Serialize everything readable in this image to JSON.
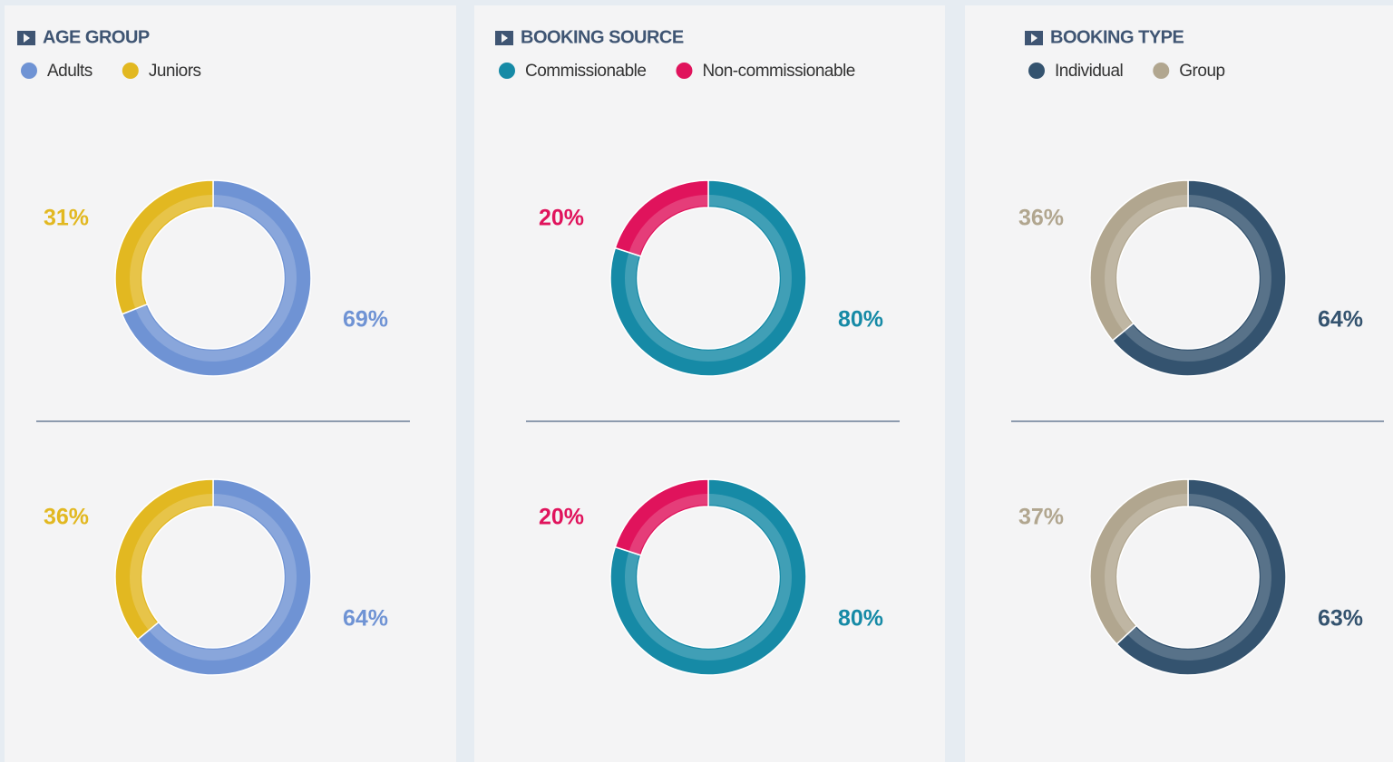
{
  "chart_data": [
    {
      "type": "pie",
      "title": "AGE GROUP",
      "categories": [
        "Adults",
        "Juniors"
      ],
      "colors": [
        "#6f93d4",
        "#e2b821"
      ],
      "series": [
        {
          "values": [
            69,
            31
          ]
        },
        {
          "values": [
            64,
            36
          ]
        }
      ]
    },
    {
      "type": "pie",
      "title": "BOOKING SOURCE",
      "categories": [
        "Commissionable",
        "Non-commissionable"
      ],
      "colors": [
        "#168aa6",
        "#e0135c"
      ],
      "series": [
        {
          "values": [
            80,
            20
          ]
        },
        {
          "values": [
            80,
            20
          ]
        }
      ]
    },
    {
      "type": "pie",
      "title": "BOOKING TYPE",
      "categories": [
        "Individual",
        "Group"
      ],
      "colors": [
        "#34536f",
        "#b1a68f"
      ],
      "series": [
        {
          "values": [
            64,
            36
          ]
        },
        {
          "values": [
            63,
            37
          ]
        }
      ]
    }
  ]
}
